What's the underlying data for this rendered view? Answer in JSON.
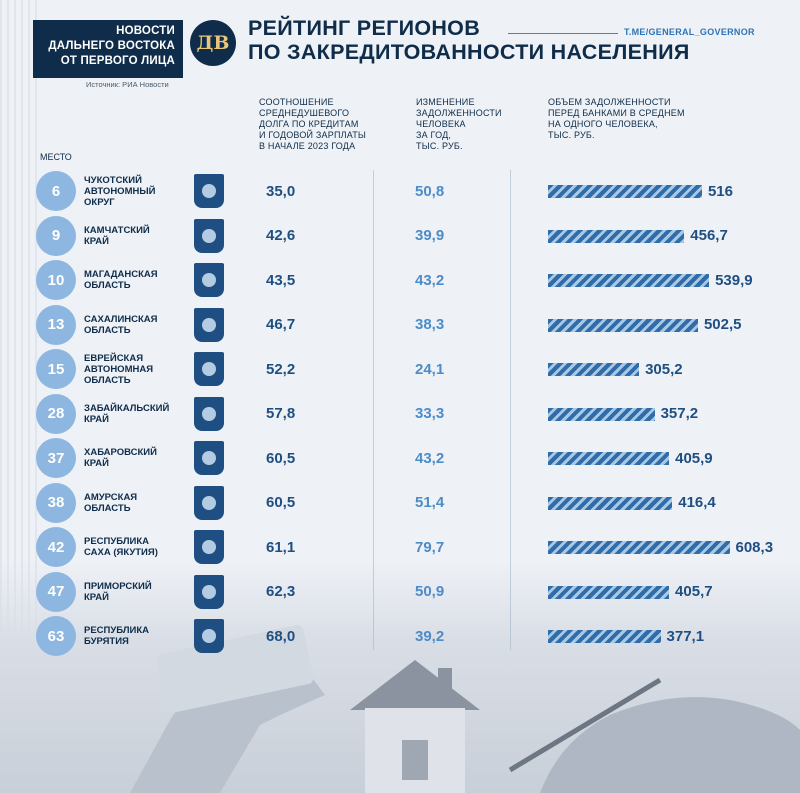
{
  "header": {
    "brand_lines": [
      "НОВОСТИ",
      "ДАЛЬНЕГО ВОСТОКА",
      "ОТ ПЕРВОГО ЛИЦА"
    ],
    "logo_text": "ДВ",
    "source": "Источник: РИА Новости",
    "title_lines": [
      "РЕЙТИНГ РЕГИОНОВ",
      "ПО ЗАКРЕДИТОВАННОСТИ НАСЕЛЕНИЯ"
    ],
    "channel": "T.ME/GENERAL_GOVERNOR"
  },
  "columns": {
    "place": "МЕСТО",
    "ratio": "СООТНОШЕНИЕ\nСРЕДНЕДУШЕВОГО\nДОЛГА ПО КРЕДИТАМ\nИ ГОДОВОЙ ЗАРПЛАТЫ\nВ НАЧАЛЕ 2023 ГОДА",
    "change": "ИЗМЕНЕНИЕ\nЗАДОЛЖЕННОСТИ\nЧЕЛОВЕКА\nЗА ГОД,\nТЫС. РУБ.",
    "debt": "ОБЪЕМ ЗАДОЛЖЕННОСТИ\nПЕРЕД БАНКАМИ В СРЕДНЕМ\nНА ОДНОГО ЧЕЛОВЕКА,\nТЫС. РУБ."
  },
  "colors": {
    "navy": "#0f2d4a",
    "rank_circle": "#8db6e0",
    "bar_dark": "#2f6ca8",
    "bar_light": "#a9c8e6"
  },
  "chart_data": {
    "type": "table",
    "x_max": 620,
    "rows": [
      {
        "place": "6",
        "region": "ЧУКОТСКИЙ\nАВТОНОМНЫЙ\nОКРУГ",
        "ratio": "35,0",
        "change": "50,8",
        "debt": 516,
        "debt_label": "516"
      },
      {
        "place": "9",
        "region": "КАМЧАТСКИЙ\nКРАЙ",
        "ratio": "42,6",
        "change": "39,9",
        "debt": 456.7,
        "debt_label": "456,7"
      },
      {
        "place": "10",
        "region": "МАГАДАНСКАЯ\nОБЛАСТЬ",
        "ratio": "43,5",
        "change": "43,2",
        "debt": 539.9,
        "debt_label": "539,9"
      },
      {
        "place": "13",
        "region": "САХАЛИНСКАЯ\nОБЛАСТЬ",
        "ratio": "46,7",
        "change": "38,3",
        "debt": 502.5,
        "debt_label": "502,5"
      },
      {
        "place": "15",
        "region": "ЕВРЕЙСКАЯ\nАВТОНОМНАЯ\nОБЛАСТЬ",
        "ratio": "52,2",
        "change": "24,1",
        "debt": 305.2,
        "debt_label": "305,2"
      },
      {
        "place": "28",
        "region": "ЗАБАЙКАЛЬСКИЙ\nКРАЙ",
        "ratio": "57,8",
        "change": "33,3",
        "debt": 357.2,
        "debt_label": "357,2"
      },
      {
        "place": "37",
        "region": "ХАБАРОВСКИЙ\nКРАЙ",
        "ratio": "60,5",
        "change": "43,2",
        "debt": 405.9,
        "debt_label": "405,9"
      },
      {
        "place": "38",
        "region": "АМУРСКАЯ\nОБЛАСТЬ",
        "ratio": "60,5",
        "change": "51,4",
        "debt": 416.4,
        "debt_label": "416,4"
      },
      {
        "place": "42",
        "region": "РЕСПУБЛИКА\nСАХА (ЯКУТИЯ)",
        "ratio": "61,1",
        "change": "79,7",
        "debt": 608.3,
        "debt_label": "608,3"
      },
      {
        "place": "47",
        "region": "ПРИМОРСКИЙ\nКРАЙ",
        "ratio": "62,3",
        "change": "50,9",
        "debt": 405.7,
        "debt_label": "405,7"
      },
      {
        "place": "63",
        "region": "РЕСПУБЛИКА\nБУРЯТИЯ",
        "ratio": "68,0",
        "change": "39,2",
        "debt": 377.1,
        "debt_label": "377,1"
      }
    ]
  }
}
